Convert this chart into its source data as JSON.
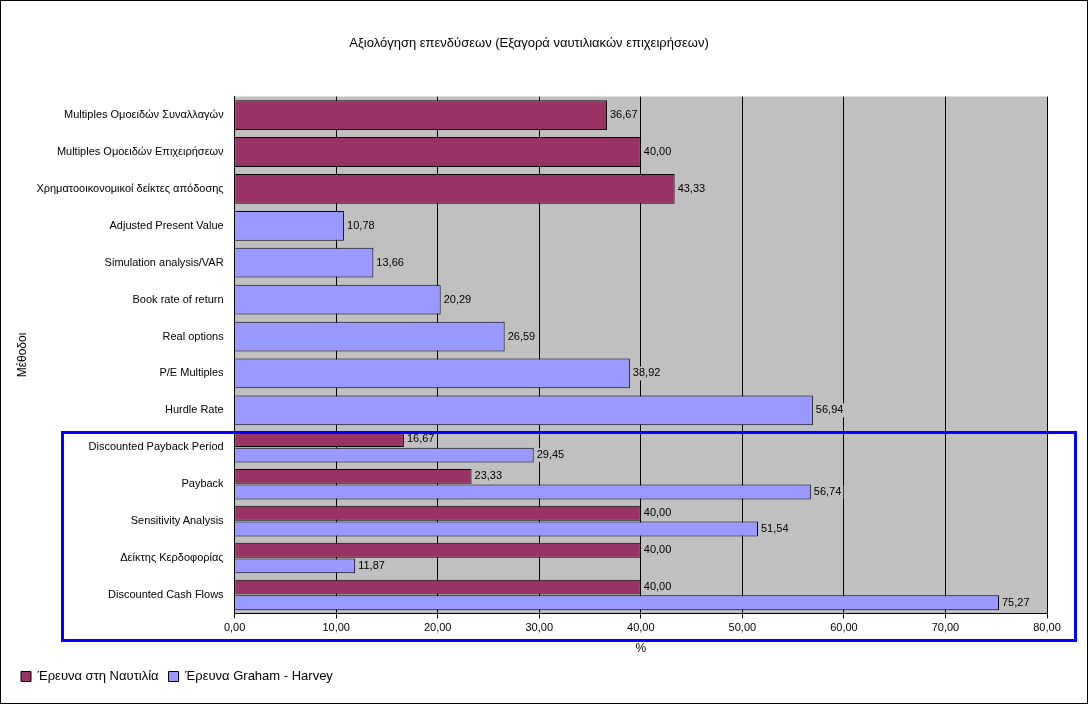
{
  "chart_data": {
    "type": "bar",
    "orientation": "horizontal",
    "title": "Αξιολόγηση επενδύσεων (Εξαγορά ναυτιλιακών επιχειρήσεων)",
    "xlabel": "%",
    "ylabel": "Μέθοδοι",
    "categories": [
      "Multiples Ομοειδών Συναλλαγών",
      "Multiples Ομοειδών Επιχειρήσεων",
      "Χρηματοοικονομικοί δείκτες απόδοσης",
      "Adjusted Present Value",
      "Simulation analysis/VAR",
      "Book rate of return",
      "Real options",
      "P/E Multiples",
      "Hurdle Rate",
      "Discounted Payback Period",
      "Payback",
      "Sensitivity Analysis",
      "Δείκτης Κερδοφορίας",
      "Discounted Cash Flows"
    ],
    "series": [
      {
        "name": "Έρευνα στη Ναυτιλία",
        "color": "#993366",
        "values": [
          36.67,
          40.0,
          43.33,
          null,
          null,
          null,
          null,
          null,
          null,
          16.67,
          23.33,
          40.0,
          40.0,
          40.0
        ],
        "value_labels": [
          "36,67",
          "40,00",
          "43,33",
          null,
          null,
          null,
          null,
          null,
          null,
          "16,67",
          "23,33",
          "40,00",
          "40,00",
          "40,00"
        ]
      },
      {
        "name": "Έρευνα Graham - Harvey",
        "color": "#9999ff",
        "values": [
          null,
          null,
          null,
          10.78,
          13.66,
          20.29,
          26.59,
          38.92,
          56.94,
          29.45,
          56.74,
          51.54,
          11.87,
          75.27
        ],
        "value_labels": [
          null,
          null,
          null,
          "10,78",
          "13,66",
          "20,29",
          "26,59",
          "38,92",
          "56,94",
          "29,45",
          "56,74",
          "51,54",
          "11,87",
          "75,27"
        ]
      }
    ],
    "xlim": [
      0,
      80
    ],
    "xticks": [
      {
        "value": 0,
        "label": "0,00"
      },
      {
        "value": 10,
        "label": "10,00"
      },
      {
        "value": 20,
        "label": "20,00"
      },
      {
        "value": 30,
        "label": "30,00"
      },
      {
        "value": 40,
        "label": "40,00"
      },
      {
        "value": 50,
        "label": "50,00"
      },
      {
        "value": 60,
        "label": "60,00"
      },
      {
        "value": 70,
        "label": "70,00"
      },
      {
        "value": 80,
        "label": "80,00"
      }
    ],
    "grid": "x",
    "legend": "bottom left"
  }
}
